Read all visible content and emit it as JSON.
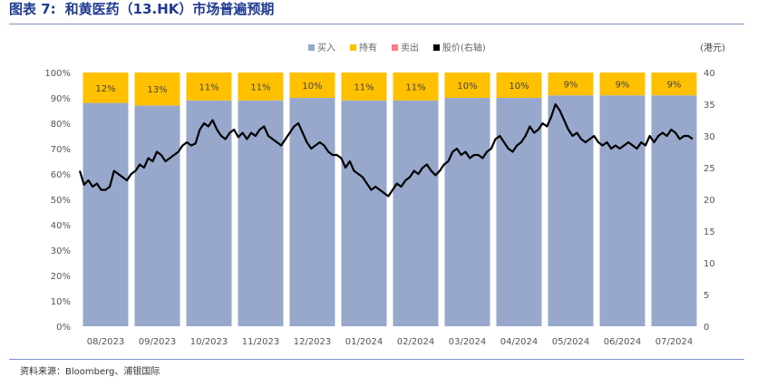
{
  "header": {
    "figure_label": "图表 7:",
    "title": "和黄医药（13.HK）市场普遍预期"
  },
  "source": "资料来源：Bloomberg、浦银国际",
  "chart_data": {
    "type": "bar",
    "stacked": true,
    "categories": [
      "08/2023",
      "09/2023",
      "10/2023",
      "11/2023",
      "12/2023",
      "01/2024",
      "02/2024",
      "03/2024",
      "04/2024",
      "05/2024",
      "06/2024",
      "07/2024"
    ],
    "series": [
      {
        "name": "买入",
        "color": "#97a8cc",
        "values": [
          88,
          87,
          89,
          89,
          90,
          89,
          89,
          90,
          90,
          91,
          91,
          91
        ]
      },
      {
        "name": "持有",
        "color": "#ffc000",
        "values": [
          12,
          13,
          11,
          11,
          10,
          11,
          11,
          10,
          10,
          9,
          9,
          9
        ]
      },
      {
        "name": "卖出",
        "color": "#ff7c80",
        "values": [
          0,
          0,
          0,
          0,
          0,
          0,
          0,
          0,
          0,
          0,
          0,
          0
        ]
      }
    ],
    "hold_labels": [
      "12%",
      "13%",
      "11%",
      "11%",
      "10%",
      "11%",
      "11%",
      "10%",
      "10%",
      "9%",
      "9%",
      "9%"
    ],
    "line_series": {
      "name": "股价(右轴)",
      "color": "#000000",
      "values": [
        24.5,
        22.3,
        23.0,
        22.0,
        22.5,
        21.5,
        21.5,
        22.0,
        24.5,
        24.0,
        23.5,
        23.0,
        24.0,
        24.5,
        25.5,
        25.0,
        26.5,
        26.0,
        27.5,
        27.0,
        26.0,
        26.5,
        27.0,
        27.5,
        28.5,
        29.0,
        28.5,
        28.8,
        31.0,
        32.0,
        31.5,
        32.5,
        31.0,
        30.0,
        29.5,
        30.5,
        31.0,
        29.8,
        30.5,
        29.5,
        30.5,
        30.0,
        31.0,
        31.5,
        30.0,
        29.5,
        29.0,
        28.5,
        29.5,
        30.5,
        31.5,
        32.0,
        30.5,
        29.0,
        28.0,
        28.5,
        29.0,
        28.5,
        27.5,
        27.0,
        27.0,
        26.5,
        25.0,
        26.0,
        24.5,
        24.0,
        23.5,
        22.5,
        21.5,
        22.0,
        21.5,
        21.0,
        20.5,
        21.5,
        22.5,
        22.0,
        23.0,
        23.5,
        24.5,
        24.0,
        25.0,
        25.5,
        24.5,
        23.8,
        24.5,
        25.5,
        26.0,
        27.5,
        28.0,
        27.0,
        27.5,
        26.5,
        27.0,
        27.0,
        26.5,
        27.5,
        28.0,
        29.5,
        30.0,
        29.0,
        28.0,
        27.5,
        28.5,
        29.0,
        30.0,
        31.5,
        30.5,
        31.0,
        32.0,
        31.5,
        33.0,
        35.0,
        34.0,
        32.5,
        31.0,
        30.0,
        30.5,
        29.5,
        29.0,
        29.5,
        30.0,
        29.0,
        28.5,
        29.0,
        28.0,
        28.5,
        28.0,
        28.5,
        29.0,
        28.5,
        28.0,
        29.0,
        28.5,
        30.0,
        29.0,
        30.0,
        30.5,
        30.0,
        31.0,
        30.5,
        29.5,
        30.0,
        30.0,
        29.5
      ]
    },
    "y_left": {
      "min": 0,
      "max": 100,
      "step": 10,
      "ticks": [
        "0%",
        "10%",
        "20%",
        "30%",
        "40%",
        "50%",
        "60%",
        "70%",
        "80%",
        "90%",
        "100%"
      ]
    },
    "y_right": {
      "min": 0,
      "max": 40,
      "step": 5,
      "ticks": [
        "0",
        "5",
        "10",
        "15",
        "20",
        "25",
        "30",
        "35",
        "40"
      ],
      "unit_label": "(港元)"
    },
    "legend": [
      {
        "label": "买入",
        "color": "#97a8cc"
      },
      {
        "label": "持有",
        "color": "#ffc000"
      },
      {
        "label": "卖出",
        "color": "#ff7c80"
      },
      {
        "label": "股价(右轴)",
        "color": "#000000"
      }
    ],
    "grid": false,
    "legend_position": "top-center"
  }
}
